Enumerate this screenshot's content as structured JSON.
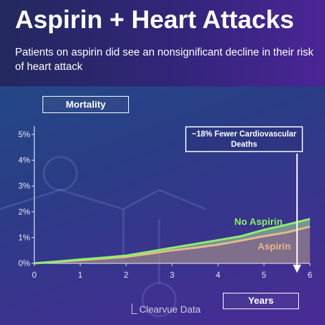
{
  "header": {
    "title": "Aspirin + Heart Attacks",
    "subtitle": "Patients on aspirin did see an nonsignificant decline in their risk of heart attack"
  },
  "ylabel_tag": "Mortality",
  "xlabel_tag": "Years",
  "brand": "Clearvue Data",
  "chart_data": {
    "type": "area",
    "title": "",
    "ylabel": "Mortality",
    "xlabel": "Years",
    "xlim": [
      0,
      6
    ],
    "ylim": [
      0,
      5
    ],
    "x_ticks": [
      "0",
      "1",
      "2",
      "3",
      "4",
      "5",
      "6"
    ],
    "y_ticks": [
      "0%",
      "1%",
      "2%",
      "3%",
      "4%",
      "5%"
    ],
    "x": [
      0,
      0.5,
      1,
      1.5,
      2,
      2.5,
      3,
      3.5,
      4,
      4.5,
      5,
      5.5,
      6
    ],
    "series": [
      {
        "name": "No Aspirin",
        "color": "#8ef06a",
        "values": [
          0,
          0.07,
          0.15,
          0.22,
          0.3,
          0.45,
          0.6,
          0.75,
          0.9,
          1.05,
          1.3,
          1.5,
          1.72
        ]
      },
      {
        "name": "Aspirin",
        "color": "#e8b88a",
        "values": [
          0,
          0.06,
          0.12,
          0.18,
          0.25,
          0.37,
          0.5,
          0.6,
          0.72,
          0.88,
          1.05,
          1.2,
          1.42
        ]
      }
    ],
    "annotation": {
      "text_line1": "~18% Fewer Cardiovascular",
      "text_line2": "Deaths",
      "x": 5.72
    },
    "grid": false
  }
}
